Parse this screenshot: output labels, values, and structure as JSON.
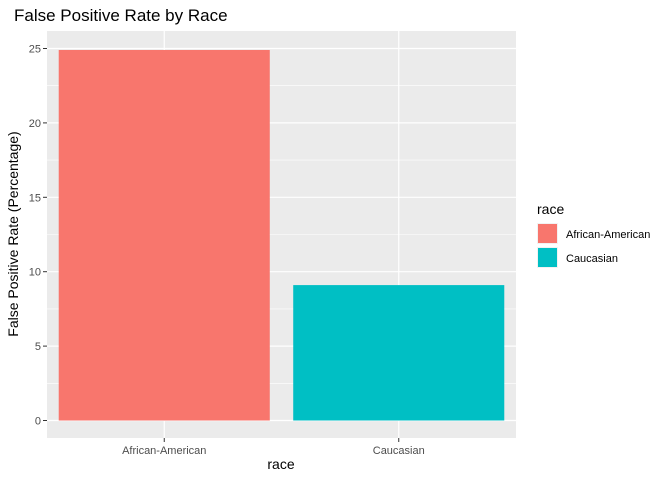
{
  "chart_data": {
    "type": "bar",
    "title": "False Positive Rate by Race",
    "xlabel": "race",
    "ylabel": "False Positive Rate (Percentage)",
    "categories": [
      "African-American",
      "Caucasian"
    ],
    "values": [
      24.9,
      9.1
    ],
    "colors": [
      "#F8766D",
      "#00BFC4"
    ],
    "ylim": [
      0,
      26.1
    ],
    "yticks": [
      0,
      5,
      10,
      15,
      20,
      25
    ],
    "grid": true,
    "panel_background": "#EBEBEB",
    "legend": {
      "title": "race",
      "placement": "right",
      "entries": [
        "African-American",
        "Caucasian"
      ]
    }
  }
}
